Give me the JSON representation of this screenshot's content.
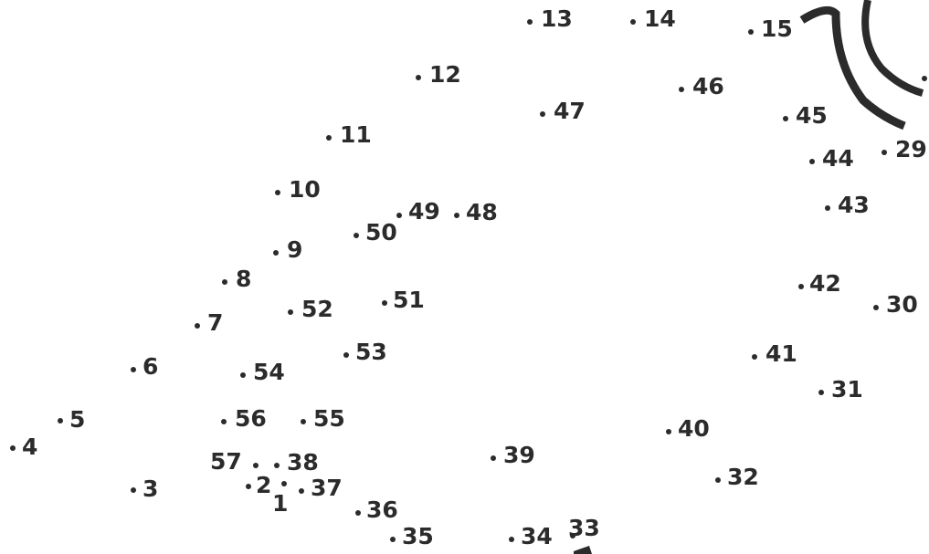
{
  "dots": [
    {
      "label": "1"
    },
    {
      "label": "2"
    },
    {
      "label": "3"
    },
    {
      "label": "4"
    },
    {
      "label": "5"
    },
    {
      "label": "6"
    },
    {
      "label": "7"
    },
    {
      "label": "8"
    },
    {
      "label": "9"
    },
    {
      "label": "10"
    },
    {
      "label": "11"
    },
    {
      "label": "12"
    },
    {
      "label": "13"
    },
    {
      "label": "14"
    },
    {
      "label": "15"
    },
    {
      "label": "29"
    },
    {
      "label": "30"
    },
    {
      "label": "31"
    },
    {
      "label": "32"
    },
    {
      "label": "33"
    },
    {
      "label": "34"
    },
    {
      "label": "35"
    },
    {
      "label": "36"
    },
    {
      "label": "37"
    },
    {
      "label": "38"
    },
    {
      "label": "39"
    },
    {
      "label": "40"
    },
    {
      "label": "41"
    },
    {
      "label": "42"
    },
    {
      "label": "43"
    },
    {
      "label": "44"
    },
    {
      "label": "45"
    },
    {
      "label": "46"
    },
    {
      "label": "47"
    },
    {
      "label": "48"
    },
    {
      "label": "49"
    },
    {
      "label": "50"
    },
    {
      "label": "51"
    },
    {
      "label": "52"
    },
    {
      "label": "53"
    },
    {
      "label": "54"
    },
    {
      "label": "55"
    },
    {
      "label": "56"
    },
    {
      "label": "57"
    }
  ]
}
